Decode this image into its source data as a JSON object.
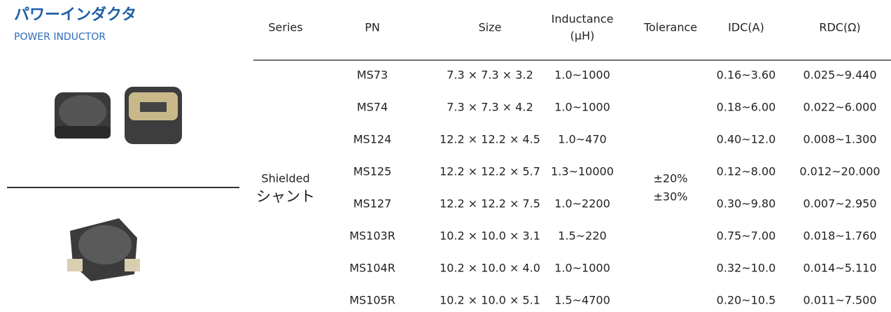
{
  "header": {
    "title": "パワーインダクタ",
    "subtitle": "POWER INDUCTOR"
  },
  "table": {
    "columns": [
      "Series",
      "PN",
      "Size",
      [
        "Inductance",
        "(μH)"
      ],
      "Tolerance",
      "IDC(A)",
      "RDC(Ω)"
    ],
    "series": [
      "Shielded",
      "シャント"
    ],
    "tolerance": [
      "±20%",
      "±30%"
    ],
    "rows": [
      [
        "MS73",
        "7.3 × 7.3 × 3.2",
        "1.0~1000",
        "0.16~3.60",
        "0.025~9.440"
      ],
      [
        "MS74",
        "7.3 × 7.3 × 4.2",
        "1.0~1000",
        "0.18~6.00",
        "0.022~6.000"
      ],
      [
        "MS124",
        "12.2 × 12.2 × 4.5",
        "1.0~470",
        "0.40~12.0",
        "0.008~1.300"
      ],
      [
        "MS125",
        "12.2 × 12.2 × 5.7",
        "1.3~10000",
        "0.12~8.00",
        "0.012~20.000"
      ],
      [
        "MS127",
        "12.2 × 12.2 × 7.5",
        "1.0~2200",
        "0.30~9.80",
        "0.007~2.950"
      ],
      [
        "MS103R",
        "10.2 × 10.0 × 3.1",
        "1.5~220",
        "0.75~7.00",
        "0.018~1.760"
      ],
      [
        "MS104R",
        "10.2 × 10.0 × 4.0",
        "1.0~1000",
        "0.32~10.0",
        "0.014~5.110"
      ],
      [
        "MS105R",
        "10.2 × 10.0 × 5.1",
        "1.5~4700",
        "0.20~10.5",
        "0.011~7.500"
      ]
    ]
  }
}
